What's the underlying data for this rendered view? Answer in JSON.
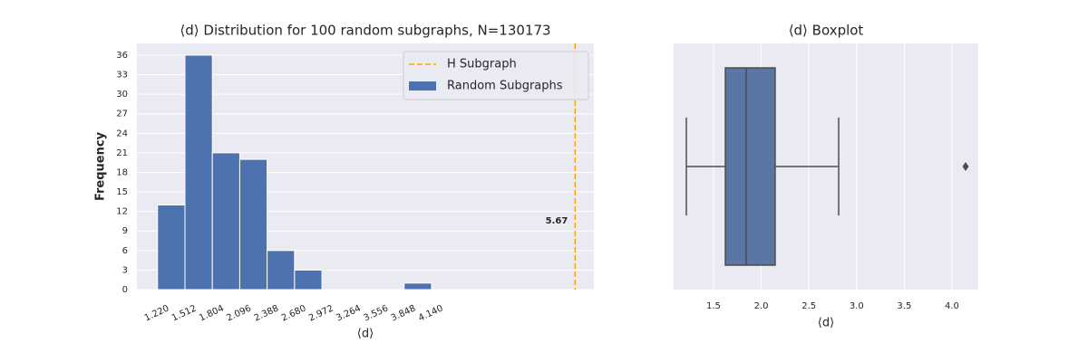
{
  "chart_data": [
    {
      "type": "histogram",
      "title": "⟨d⟩ Distribution for 100 random subgraphs, N=130173",
      "x_label": "⟨d⟩",
      "y_label": "Frequency",
      "bins": [
        1.22,
        1.512,
        1.804,
        2.096,
        2.388,
        2.68,
        2.972,
        3.264,
        3.556,
        3.848,
        4.14
      ],
      "series": [
        {
          "name": "Random Subgraphs",
          "color": "#4c72b0",
          "values": [
            13,
            36,
            21,
            20,
            6,
            3,
            0,
            0,
            0,
            1
          ]
        }
      ],
      "vlines": [
        {
          "name": "H Subgraph",
          "value": 5.67,
          "color": "#ffa500"
        }
      ],
      "xlim": [
        1.0,
        5.87
      ],
      "xticks": [
        {
          "value": 1.22,
          "label": "1.220"
        },
        {
          "value": 1.512,
          "label": "1.512"
        },
        {
          "value": 1.804,
          "label": "1.804"
        },
        {
          "value": 2.096,
          "label": "2.096"
        },
        {
          "value": 2.388,
          "label": "2.388"
        },
        {
          "value": 2.68,
          "label": "2.680"
        },
        {
          "value": 2.972,
          "label": "2.972"
        },
        {
          "value": 3.264,
          "label": "3.264"
        },
        {
          "value": 3.556,
          "label": "3.556"
        },
        {
          "value": 3.848,
          "label": "3.848"
        },
        {
          "value": 4.14,
          "label": "4.140"
        }
      ],
      "ylim": [
        0,
        37.8
      ],
      "yticks": [
        0,
        3,
        6,
        9,
        12,
        15,
        18,
        21,
        24,
        27,
        30,
        33,
        36
      ],
      "grid": "y",
      "legend": "upper right"
    },
    {
      "type": "box",
      "title": "⟨d⟩ Boxplot",
      "x_label": "⟨d⟩",
      "color": "#5875a4",
      "whislo": 1.215,
      "q1": 1.624,
      "med": 1.842,
      "q3": 2.146,
      "whishi": 2.812,
      "fliers": [
        4.143
      ],
      "xlim": [
        1.082,
        4.276
      ],
      "xticks": [
        1.5,
        {
          "value": 2,
          "label": "2.0"
        },
        2.5,
        {
          "value": 3,
          "label": "3.0"
        },
        3.5,
        {
          "value": 4,
          "label": "4.0"
        }
      ],
      "grid": "x"
    }
  ]
}
